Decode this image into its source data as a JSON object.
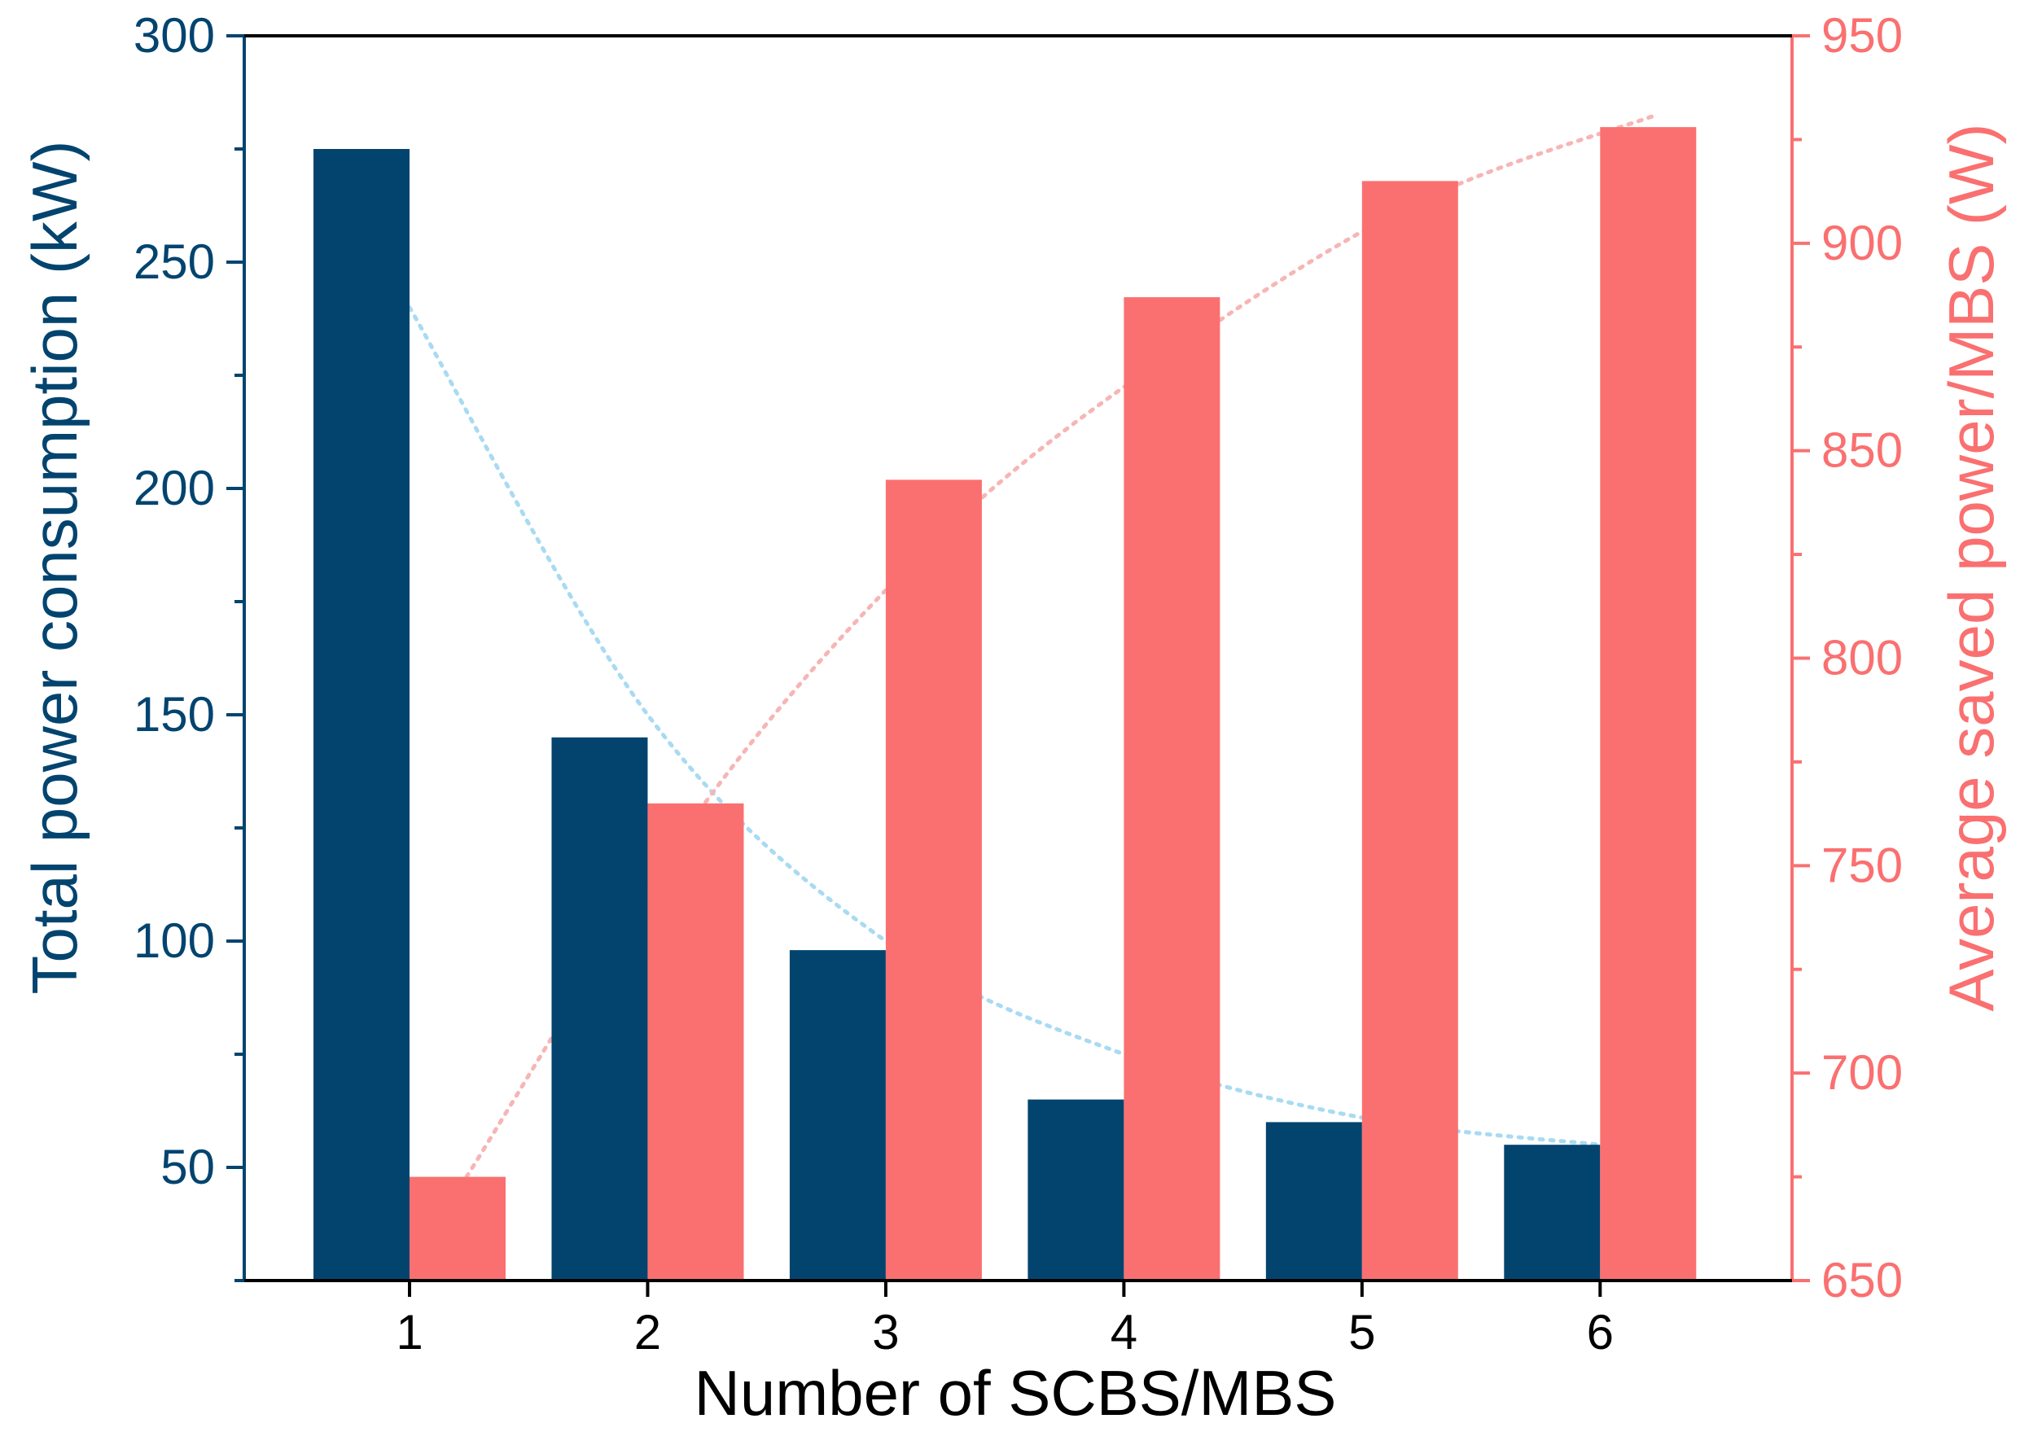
{
  "chart_data": {
    "type": "bar",
    "categories": [
      "1",
      "2",
      "3",
      "4",
      "5",
      "6"
    ],
    "xlabel": "Number of SCBS/MBS",
    "series": [
      {
        "name": "Total power consumption",
        "axis": "left",
        "unit": "kW",
        "color": "#03446F",
        "values": [
          275,
          145,
          98,
          65,
          60,
          55
        ],
        "trend": [
          240,
          150,
          100,
          75,
          61,
          55
        ]
      },
      {
        "name": "Average saved power/MBS",
        "axis": "right",
        "unit": "W",
        "color": "#FA7070",
        "values": [
          675,
          765,
          843,
          887,
          915,
          928
        ],
        "trend": [
          675,
          765,
          830,
          875,
          910,
          931
        ]
      }
    ],
    "y_left": {
      "label": "Total power consumption (kW)",
      "ylim": [
        25,
        300
      ],
      "ticks": [
        "50",
        "100",
        "150",
        "200",
        "250",
        "300"
      ],
      "tick_values": [
        50,
        100,
        150,
        200,
        250,
        300
      ],
      "color": "#03446F"
    },
    "y_right": {
      "label": "Average saved power/MBS (W)",
      "ylim": [
        650,
        950
      ],
      "ticks": [
        "650",
        "700",
        "750",
        "800",
        "850",
        "900",
        "950"
      ],
      "tick_values": [
        650,
        700,
        750,
        800,
        850,
        900,
        950
      ],
      "color": "#FA7070"
    },
    "trend_colors": {
      "left": "#A8DBF2",
      "right": "#F7B5B5"
    },
    "grid": false,
    "legend": "none"
  }
}
